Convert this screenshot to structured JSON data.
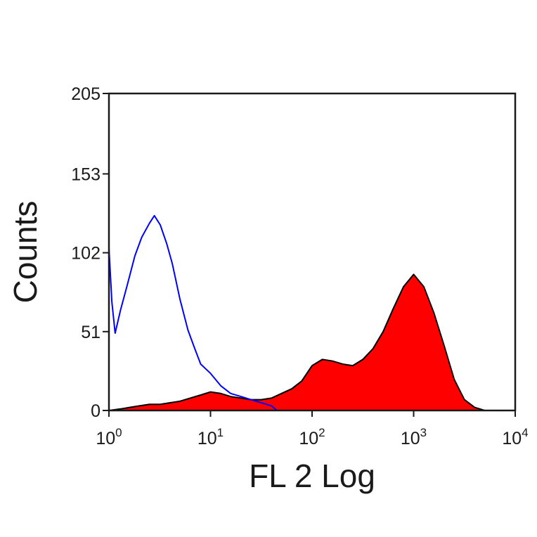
{
  "chart_data": {
    "type": "area",
    "title": "",
    "xlabel": "FL 2 Log",
    "ylabel": "Counts",
    "x_scale": "log",
    "xlim": [
      1,
      10000
    ],
    "ylim": [
      0,
      205
    ],
    "x_ticks": [
      {
        "value": 1,
        "base": "10",
        "exp": "0"
      },
      {
        "value": 10,
        "base": "10",
        "exp": "1"
      },
      {
        "value": 100,
        "base": "10",
        "exp": "2"
      },
      {
        "value": 1000,
        "base": "10",
        "exp": "3"
      },
      {
        "value": 10000,
        "base": "10",
        "exp": "4"
      }
    ],
    "y_ticks": [
      {
        "value": 0,
        "label": "0"
      },
      {
        "value": 51,
        "label": "51"
      },
      {
        "value": 102,
        "label": "102"
      },
      {
        "value": 153,
        "label": "153"
      },
      {
        "value": 205,
        "label": "205"
      }
    ],
    "grid": false,
    "legend": "none",
    "series": [
      {
        "style": "filled",
        "fill_color": "#ff0000",
        "line_color": "#000000",
        "points": [
          [
            1.0,
            0
          ],
          [
            1.3,
            1
          ],
          [
            1.6,
            2
          ],
          [
            2.0,
            3
          ],
          [
            2.5,
            4
          ],
          [
            3.2,
            4
          ],
          [
            4.0,
            5
          ],
          [
            5.0,
            6
          ],
          [
            6.3,
            8
          ],
          [
            8.0,
            10
          ],
          [
            10,
            12
          ],
          [
            12.6,
            11
          ],
          [
            15.8,
            9
          ],
          [
            20,
            8
          ],
          [
            25,
            7
          ],
          [
            31.6,
            7
          ],
          [
            39.8,
            8
          ],
          [
            50,
            11
          ],
          [
            63,
            14
          ],
          [
            79,
            19
          ],
          [
            100,
            29
          ],
          [
            126,
            33
          ],
          [
            158,
            32
          ],
          [
            200,
            30
          ],
          [
            251,
            29
          ],
          [
            316,
            33
          ],
          [
            398,
            40
          ],
          [
            501,
            51
          ],
          [
            631,
            66
          ],
          [
            794,
            80
          ],
          [
            1000,
            88
          ],
          [
            1259,
            80
          ],
          [
            1585,
            63
          ],
          [
            1995,
            42
          ],
          [
            2512,
            20
          ],
          [
            3162,
            7
          ],
          [
            3981,
            2
          ],
          [
            5012,
            0
          ],
          [
            10000,
            0
          ]
        ]
      },
      {
        "style": "line",
        "line_color": "#0000ff",
        "points": [
          [
            1.0,
            105
          ],
          [
            1.07,
            70
          ],
          [
            1.15,
            50
          ],
          [
            1.3,
            65
          ],
          [
            1.5,
            80
          ],
          [
            1.8,
            100
          ],
          [
            2.1,
            112
          ],
          [
            2.5,
            121
          ],
          [
            2.8,
            126
          ],
          [
            3.2,
            120
          ],
          [
            3.7,
            108
          ],
          [
            4.2,
            95
          ],
          [
            5.0,
            72
          ],
          [
            6.0,
            52
          ],
          [
            7.0,
            40
          ],
          [
            8.0,
            30
          ],
          [
            10,
            24
          ],
          [
            12.6,
            16
          ],
          [
            15.8,
            11
          ],
          [
            20,
            9
          ],
          [
            25,
            7
          ],
          [
            31.6,
            5
          ],
          [
            39.8,
            3
          ],
          [
            45,
            0
          ]
        ]
      }
    ]
  }
}
